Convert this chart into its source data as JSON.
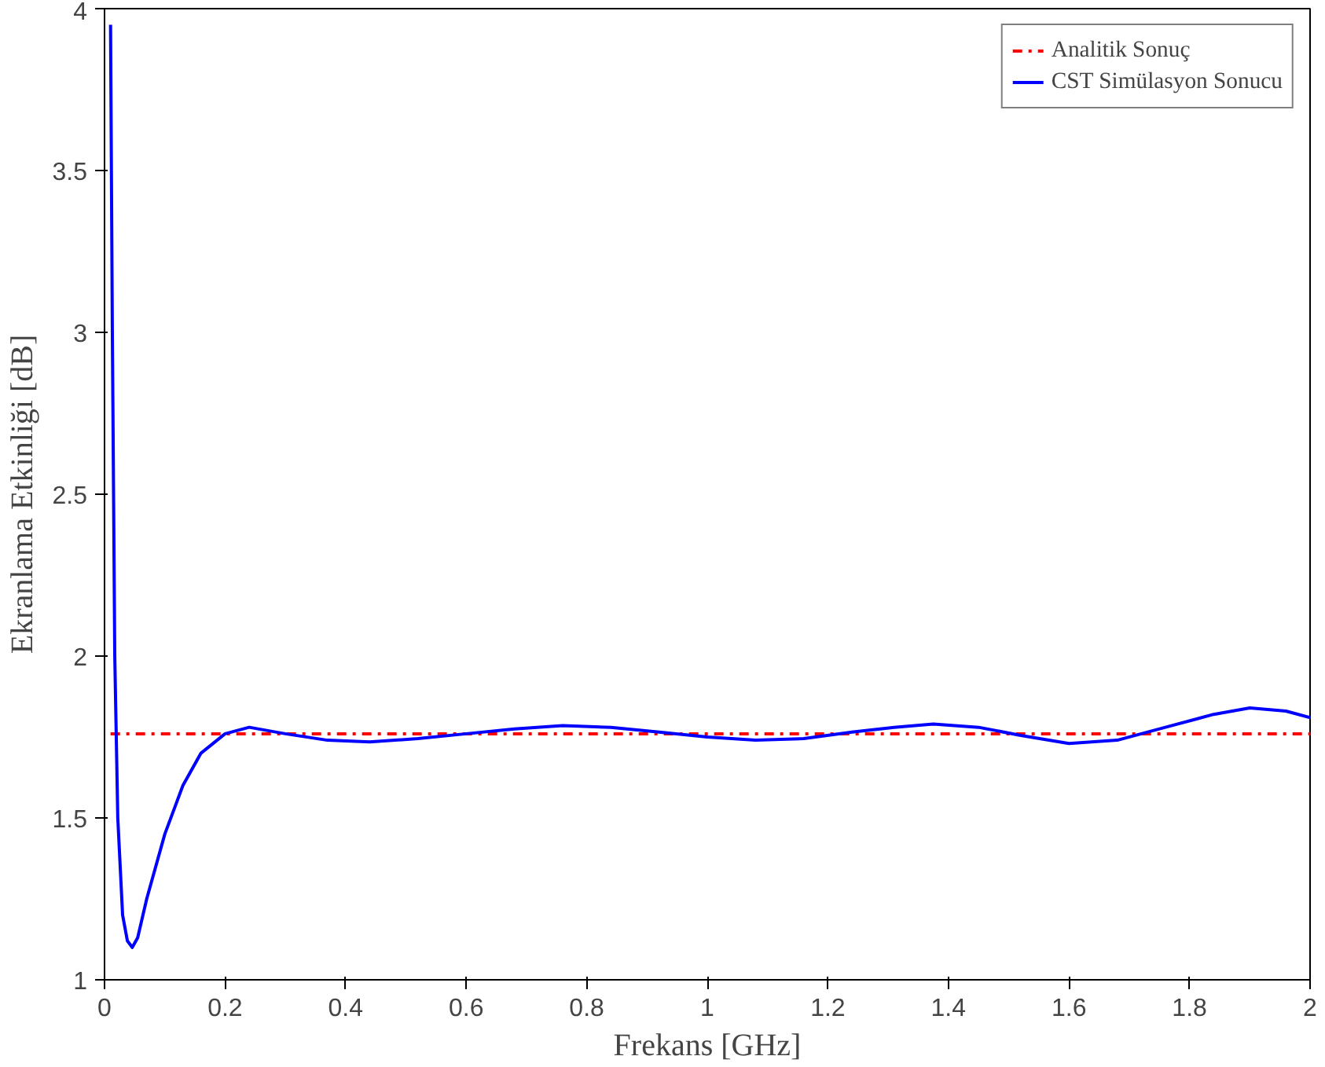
{
  "chart_data": {
    "type": "line",
    "xlabel": "Frekans [GHz]",
    "ylabel": "Ekranlama Etkinliği [dB]",
    "xlim": [
      0,
      2
    ],
    "ylim": [
      1,
      4
    ],
    "xticks": [
      0,
      0.2,
      0.4,
      0.6,
      0.8,
      1,
      1.2,
      1.4,
      1.6,
      1.8,
      2
    ],
    "yticks": [
      1,
      1.5,
      2,
      2.5,
      3,
      3.5,
      4
    ],
    "grid": false,
    "legend": "top right",
    "series": [
      {
        "name": "Analitik Sonuç",
        "color": "#ff0000",
        "line_style": "dashdot",
        "x": [
          0.01,
          2
        ],
        "values": [
          1.76,
          1.76
        ]
      },
      {
        "name": "CST Simülasyon Sonucu",
        "color": "#0000ff",
        "line_style": "solid",
        "x": [
          0.01,
          0.013,
          0.017,
          0.022,
          0.03,
          0.038,
          0.046,
          0.055,
          0.07,
          0.1,
          0.13,
          0.16,
          0.2,
          0.24,
          0.3,
          0.37,
          0.44,
          0.52,
          0.6,
          0.68,
          0.76,
          0.84,
          0.92,
          1.0,
          1.08,
          1.16,
          1.24,
          1.31,
          1.375,
          1.45,
          1.52,
          1.6,
          1.68,
          1.76,
          1.84,
          1.9,
          1.96,
          2.0
        ],
        "values": [
          3.95,
          3.0,
          2.0,
          1.5,
          1.2,
          1.12,
          1.1,
          1.13,
          1.25,
          1.45,
          1.6,
          1.7,
          1.76,
          1.78,
          1.76,
          1.74,
          1.735,
          1.745,
          1.76,
          1.775,
          1.785,
          1.78,
          1.765,
          1.75,
          1.74,
          1.745,
          1.765,
          1.78,
          1.79,
          1.78,
          1.755,
          1.73,
          1.74,
          1.78,
          1.82,
          1.84,
          1.83,
          1.81
        ]
      }
    ]
  }
}
